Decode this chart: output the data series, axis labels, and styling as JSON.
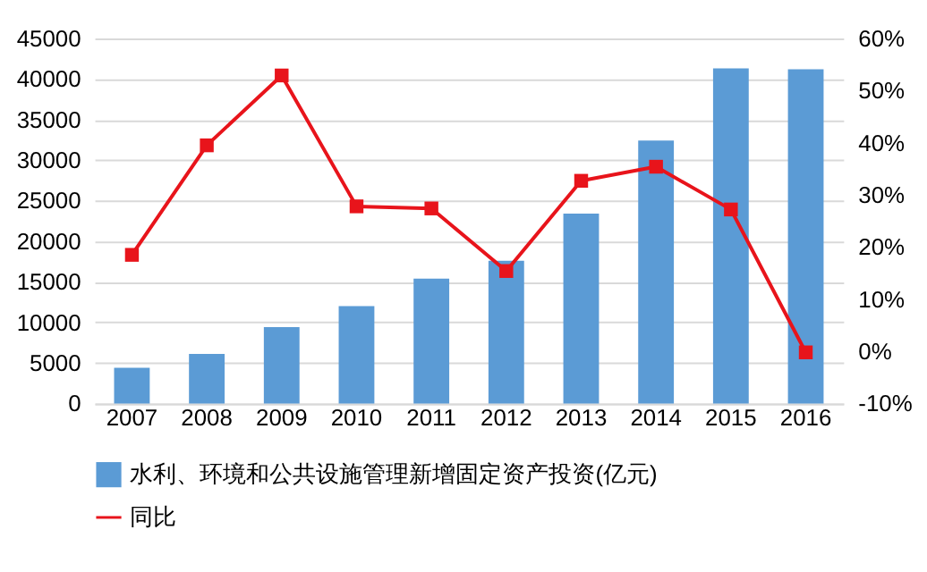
{
  "chart_data": {
    "type": "bar",
    "categories": [
      "2007",
      "2008",
      "2009",
      "2010",
      "2011",
      "2012",
      "2013",
      "2014",
      "2015",
      "2016"
    ],
    "series": [
      {
        "name": "水利、环境和公共设施管理新增固定资产投资(亿元)",
        "color": "#5b9bd5",
        "values": [
          4400,
          6100,
          9400,
          12000,
          15400,
          17600,
          23400,
          32400,
          41300,
          41200
        ]
      },
      {
        "name": "同比",
        "type": "line",
        "axis": "y2",
        "color": "#e8141b",
        "marker": "square",
        "values": [
          18.5,
          39.5,
          52.9,
          27.8,
          27.4,
          15.4,
          32.7,
          35.4,
          27.2,
          -0.2
        ]
      }
    ],
    "ylim": [
      0,
      45000
    ],
    "yticks": [
      0,
      5000,
      10000,
      15000,
      20000,
      25000,
      30000,
      35000,
      40000,
      45000
    ],
    "y2lim": [
      -10,
      60
    ],
    "y2ticks": [
      {
        "value": -10,
        "label": "-10%"
      },
      {
        "value": 0,
        "label": "0%"
      },
      {
        "value": 10,
        "label": "10%"
      },
      {
        "value": 20,
        "label": "20%"
      },
      {
        "value": 30,
        "label": "30%"
      },
      {
        "value": 40,
        "label": "40%"
      },
      {
        "value": 50,
        "label": "50%"
      },
      {
        "value": 60,
        "label": "60%"
      }
    ],
    "grid": "y",
    "legend": "bottom"
  }
}
